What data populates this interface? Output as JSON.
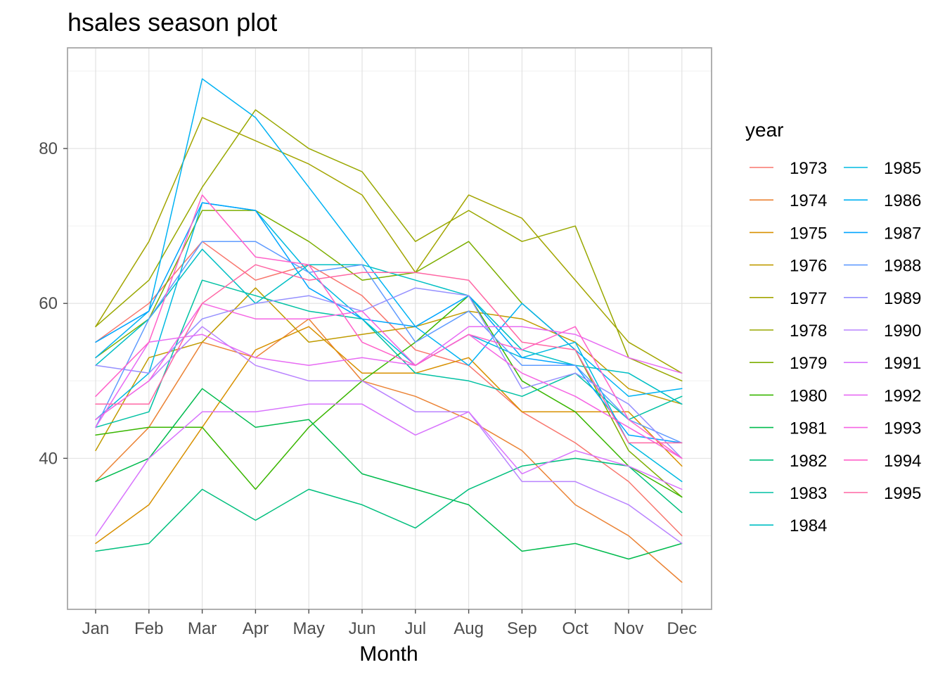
{
  "chart_data": {
    "type": "line",
    "title": "hsales season plot",
    "xlabel": "Month",
    "ylabel": "",
    "categories": [
      "Jan",
      "Feb",
      "Mar",
      "Apr",
      "May",
      "Jun",
      "Jul",
      "Aug",
      "Sep",
      "Oct",
      "Nov",
      "Dec"
    ],
    "ylim": [
      20.5,
      93
    ],
    "y_ticks": [
      40,
      60,
      80
    ],
    "y_tick_labels": [
      "40",
      "60",
      "80"
    ],
    "grid": true,
    "legend": {
      "title": "year",
      "position": "right",
      "columns": 2
    },
    "series": [
      {
        "name": "1973",
        "color": "#F8766D",
        "values": [
          55,
          60,
          68,
          63,
          65,
          61,
          54,
          52,
          46,
          42,
          37,
          30
        ]
      },
      {
        "name": "1974",
        "color": "#EB8335",
        "values": [
          37,
          44,
          55,
          53,
          58,
          50,
          48,
          45,
          41,
          34,
          30,
          24
        ]
      },
      {
        "name": "1975",
        "color": "#D89000",
        "values": [
          29,
          34,
          44,
          54,
          57,
          51,
          51,
          53,
          46,
          46,
          46,
          39
        ]
      },
      {
        "name": "1976",
        "color": "#C09B00",
        "values": [
          41,
          53,
          55,
          62,
          55,
          56,
          57,
          59,
          58,
          55,
          49,
          47
        ]
      },
      {
        "name": "1977",
        "color": "#A3A500",
        "values": [
          57,
          68,
          84,
          81,
          78,
          74,
          64,
          74,
          71,
          63,
          55,
          51
        ]
      },
      {
        "name": "1978",
        "color": "#99A800",
        "values": [
          57,
          63,
          75,
          85,
          80,
          77,
          68,
          72,
          68,
          70,
          53,
          50
        ]
      },
      {
        "name": "1979",
        "color": "#7CAE00",
        "values": [
          53,
          58,
          72,
          72,
          68,
          63,
          64,
          68,
          60,
          54,
          41,
          35
        ]
      },
      {
        "name": "1980",
        "color": "#39B600",
        "values": [
          43,
          44,
          44,
          36,
          44,
          50,
          55,
          61,
          50,
          46,
          39,
          35
        ]
      },
      {
        "name": "1981",
        "color": "#00BB4E",
        "values": [
          37,
          40,
          49,
          44,
          45,
          38,
          36,
          34,
          28,
          29,
          27,
          29
        ]
      },
      {
        "name": "1982",
        "color": "#00BF7D",
        "values": [
          28,
          29,
          36,
          32,
          36,
          34,
          31,
          36,
          39,
          40,
          39,
          33
        ]
      },
      {
        "name": "1983",
        "color": "#00C1A3",
        "values": [
          44,
          46,
          63,
          61,
          59,
          58,
          51,
          50,
          48,
          51,
          45,
          48
        ]
      },
      {
        "name": "1984",
        "color": "#00BFC4",
        "values": [
          52,
          58,
          67,
          60,
          65,
          65,
          63,
          61,
          54,
          52,
          51,
          47
        ]
      },
      {
        "name": "1985",
        "color": "#00BAE0",
        "values": [
          45,
          51,
          73,
          72,
          64,
          58,
          52,
          56,
          53,
          55,
          42,
          37
        ]
      },
      {
        "name": "1986",
        "color": "#00B2F3",
        "values": [
          53,
          59,
          89,
          84,
          75,
          66,
          57,
          52,
          60,
          54,
          48,
          49
        ]
      },
      {
        "name": "1987",
        "color": "#00A5FF",
        "values": [
          55,
          59,
          73,
          72,
          62,
          58,
          57,
          61,
          53,
          52,
          43,
          42
        ]
      },
      {
        "name": "1988",
        "color": "#619CFF",
        "values": [
          44,
          58,
          68,
          68,
          64,
          65,
          55,
          59,
          52,
          52,
          45,
          42
        ]
      },
      {
        "name": "1989",
        "color": "#9590FF",
        "values": [
          52,
          51,
          58,
          60,
          61,
          59,
          62,
          61,
          49,
          51,
          47,
          40
        ]
      },
      {
        "name": "1990",
        "color": "#B983FF",
        "values": [
          45,
          50,
          57,
          52,
          50,
          50,
          46,
          46,
          37,
          37,
          34,
          29
        ]
      },
      {
        "name": "1991",
        "color": "#D874FD",
        "values": [
          30,
          40,
          46,
          46,
          47,
          47,
          43,
          46,
          38,
          41,
          39,
          36
        ]
      },
      {
        "name": "1992",
        "color": "#E76BF3",
        "values": [
          44,
          55,
          56,
          53,
          52,
          53,
          52,
          57,
          57,
          56,
          53,
          51
        ]
      },
      {
        "name": "1993",
        "color": "#F564E3",
        "values": [
          45,
          50,
          60,
          58,
          58,
          59,
          52,
          56,
          51,
          48,
          44,
          40
        ]
      },
      {
        "name": "1994",
        "color": "#FF61C9",
        "values": [
          48,
          55,
          74,
          66,
          65,
          55,
          52,
          56,
          54,
          57,
          45,
          40
        ]
      },
      {
        "name": "1995",
        "color": "#FF67A4",
        "values": [
          47,
          47,
          60,
          65,
          63,
          64,
          64,
          63,
          55,
          54,
          42,
          42
        ]
      }
    ]
  }
}
